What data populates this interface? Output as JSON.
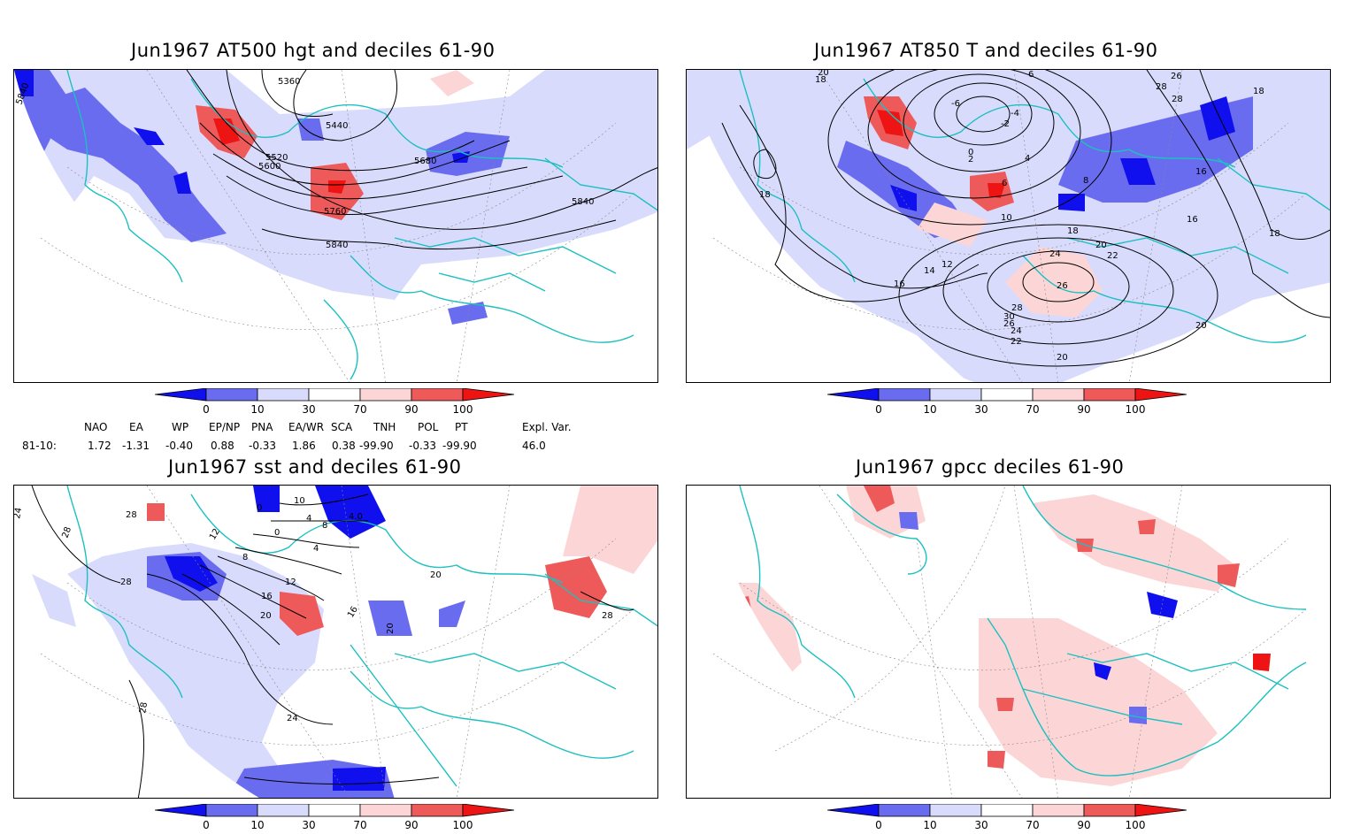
{
  "panels": [
    {
      "title": "Jun1967 AT500 hgt and deciles 61-90",
      "contour_labels": [
        "5840",
        "5360",
        "5440",
        "5520",
        "5600",
        "5680",
        "5760",
        "5840",
        "5840"
      ]
    },
    {
      "title": "Jun1967 AT850 T and deciles 61-90",
      "contour_labels": [
        "20",
        "18",
        "6",
        "-6",
        "-4",
        "-2",
        "0",
        "2",
        "4",
        "6",
        "8",
        "10",
        "12",
        "14",
        "16",
        "18",
        "20",
        "22",
        "24",
        "26",
        "28",
        "30",
        "26",
        "24",
        "22",
        "20",
        "18",
        "16",
        "18",
        "16",
        "26",
        "28",
        "18",
        "28",
        "20"
      ]
    },
    {
      "title": "Jun1967 sst and deciles 61-90",
      "contour_labels": [
        "24",
        "28",
        "28",
        "10",
        "0",
        "4",
        "8",
        "12",
        "16",
        "20",
        "24",
        "28",
        "28",
        "16",
        "20",
        "20",
        "28",
        "12",
        "8",
        "4",
        "0",
        "4.0"
      ]
    },
    {
      "title": "Jun1967 gpcc deciles 61-90",
      "contour_labels": []
    }
  ],
  "colorbar": {
    "labels": [
      "0",
      "10",
      "30",
      "70",
      "90",
      "100"
    ],
    "colors": [
      "#1010ee",
      "#6a6cf0",
      "#d9dbfc",
      "#ffffff",
      "#fcd6d6",
      "#ee5a5a",
      "#ee1414"
    ]
  },
  "indices": {
    "headers": [
      "NAO",
      "EA",
      "WP",
      "EP/NP",
      "PNA",
      "EA/WR",
      "SCA",
      "TNH",
      "POL",
      "PT",
      "Expl. Var."
    ],
    "row_label": "81-10:",
    "values": [
      "1.72",
      "-1.31",
      "-0.40",
      "0.88",
      "-0.33",
      "1.86",
      "0.38",
      "-99.90",
      "-0.33",
      "-99.90",
      "46.0"
    ]
  },
  "colors": {
    "coast": "#1cc0c0",
    "contour": "#000000",
    "grid": "#888888"
  }
}
